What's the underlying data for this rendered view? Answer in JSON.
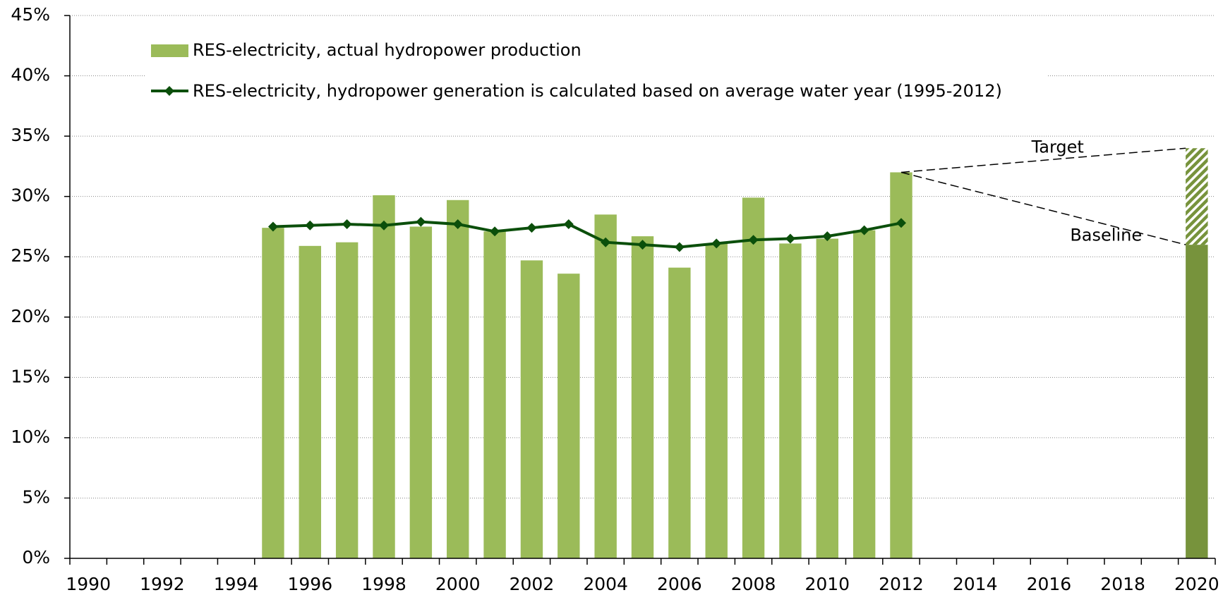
{
  "chart_data": {
    "type": "bar",
    "categories": [
      "1990",
      null,
      "1992",
      null,
      "1994",
      null,
      "1996",
      null,
      "1998",
      null,
      "2000",
      null,
      "2002",
      null,
      "2004",
      null,
      "2006",
      null,
      "2008",
      null,
      "2010",
      null,
      "2012",
      null,
      "2014",
      null,
      "2016",
      null,
      "2018",
      null,
      "2020"
    ],
    "series": [
      {
        "name": "RES-electricity, actual hydropower production",
        "color": "#9bbb59",
        "values": [
          null,
          null,
          null,
          null,
          null,
          27.4,
          25.9,
          26.2,
          30.1,
          27.5,
          29.7,
          27.1,
          24.7,
          23.6,
          28.5,
          26.7,
          24.1,
          26.1,
          29.9,
          26.1,
          26.5,
          27.2,
          32.0,
          null,
          null,
          null,
          null,
          null,
          null,
          null,
          null
        ]
      },
      {
        "name": "RES-electricity, hydropower generation is calculated based on average water year (1995-2012)",
        "type": "line",
        "color": "#0b4f0b",
        "values": [
          null,
          null,
          null,
          null,
          null,
          27.5,
          27.6,
          27.7,
          27.6,
          27.9,
          27.7,
          27.1,
          27.4,
          27.7,
          26.2,
          26.0,
          25.8,
          26.1,
          26.4,
          26.5,
          26.7,
          27.2,
          27.8,
          null,
          null,
          null,
          null,
          null,
          null,
          null,
          null
        ]
      }
    ],
    "projection": {
      "baseline": {
        "label": "Baseline",
        "value": 26,
        "color": "#77933c"
      },
      "target": {
        "label": "Target",
        "value": 8,
        "color": "#77933c"
      }
    },
    "ylim": [
      0,
      45
    ],
    "yticks": [
      {
        "value": 0,
        "label": "0%"
      },
      {
        "value": 5,
        "label": "5%"
      },
      {
        "value": 10,
        "label": "10%"
      },
      {
        "value": 15,
        "label": "15%"
      },
      {
        "value": 20,
        "label": "20%"
      },
      {
        "value": 25,
        "label": "25%"
      },
      {
        "value": 30,
        "label": "30%"
      },
      {
        "value": 35,
        "label": "35%"
      },
      {
        "value": 40,
        "label": "40%"
      },
      {
        "value": 45,
        "label": "45%"
      }
    ],
    "grid": true
  }
}
